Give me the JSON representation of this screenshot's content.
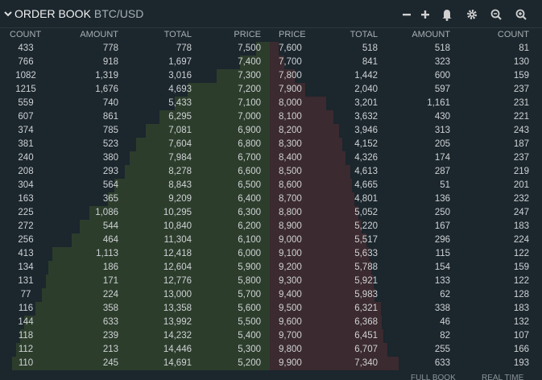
{
  "header": {
    "title": "ORDER BOOK",
    "pair": "BTC/USD"
  },
  "table": {
    "columns": [
      "COUNT",
      "AMOUNT",
      "TOTAL",
      "PRICE",
      "PRICE",
      "TOTAL",
      "AMOUNT",
      "COUNT"
    ],
    "rows": [
      [
        "433",
        "778",
        "778",
        "7,500",
        "7,600",
        "518",
        "518",
        "81"
      ],
      [
        "766",
        "918",
        "1,697",
        "7,400",
        "7,700",
        "841",
        "323",
        "130"
      ],
      [
        "1082",
        "1,319",
        "3,016",
        "7,300",
        "7,800",
        "1,442",
        "600",
        "159"
      ],
      [
        "1215",
        "1,676",
        "4,693",
        "7,200",
        "7,900",
        "2,040",
        "597",
        "237"
      ],
      [
        "559",
        "740",
        "5,433",
        "7,100",
        "8,000",
        "3,201",
        "1,161",
        "231"
      ],
      [
        "607",
        "861",
        "6,295",
        "7,000",
        "8,100",
        "3,632",
        "430",
        "221"
      ],
      [
        "374",
        "785",
        "7,081",
        "6,900",
        "8,200",
        "3,946",
        "313",
        "243"
      ],
      [
        "381",
        "523",
        "7,604",
        "6,800",
        "8,300",
        "4,152",
        "205",
        "187"
      ],
      [
        "240",
        "380",
        "7,984",
        "6,700",
        "8,400",
        "4,326",
        "174",
        "237"
      ],
      [
        "208",
        "293",
        "8,278",
        "6,600",
        "8,500",
        "4,613",
        "287",
        "219"
      ],
      [
        "304",
        "564",
        "8,843",
        "6,500",
        "8,600",
        "4,665",
        "51",
        "201"
      ],
      [
        "163",
        "365",
        "9,209",
        "6,400",
        "8,700",
        "4,801",
        "136",
        "232"
      ],
      [
        "225",
        "1,086",
        "10,295",
        "6,300",
        "8,800",
        "5,052",
        "250",
        "247"
      ],
      [
        "272",
        "544",
        "10,840",
        "6,200",
        "8,900",
        "5,220",
        "167",
        "183"
      ],
      [
        "256",
        "464",
        "11,304",
        "6,100",
        "9,000",
        "5,517",
        "296",
        "224"
      ],
      [
        "413",
        "1,113",
        "12,418",
        "6,000",
        "9,100",
        "5,633",
        "115",
        "122"
      ],
      [
        "134",
        "186",
        "12,604",
        "5,900",
        "9,200",
        "5,788",
        "154",
        "159"
      ],
      [
        "131",
        "171",
        "12,776",
        "5,800",
        "9,300",
        "5,921",
        "133",
        "122"
      ],
      [
        "77",
        "224",
        "13,000",
        "5,700",
        "9,400",
        "5,983",
        "62",
        "128"
      ],
      [
        "116",
        "358",
        "13,358",
        "5,600",
        "9,500",
        "6,321",
        "338",
        "183"
      ],
      [
        "144",
        "633",
        "13,992",
        "5,500",
        "9,600",
        "6,368",
        "46",
        "132"
      ],
      [
        "118",
        "239",
        "14,232",
        "5,400",
        "9,700",
        "6,451",
        "82",
        "107"
      ],
      [
        "112",
        "213",
        "14,446",
        "5,300",
        "9,800",
        "6,707",
        "255",
        "166"
      ],
      [
        "110",
        "245",
        "14,691",
        "5,200",
        "9,900",
        "7,340",
        "633",
        "193"
      ]
    ]
  },
  "footer": {
    "full_book": "FULL BOOK",
    "real_time": "REAL TIME"
  }
}
